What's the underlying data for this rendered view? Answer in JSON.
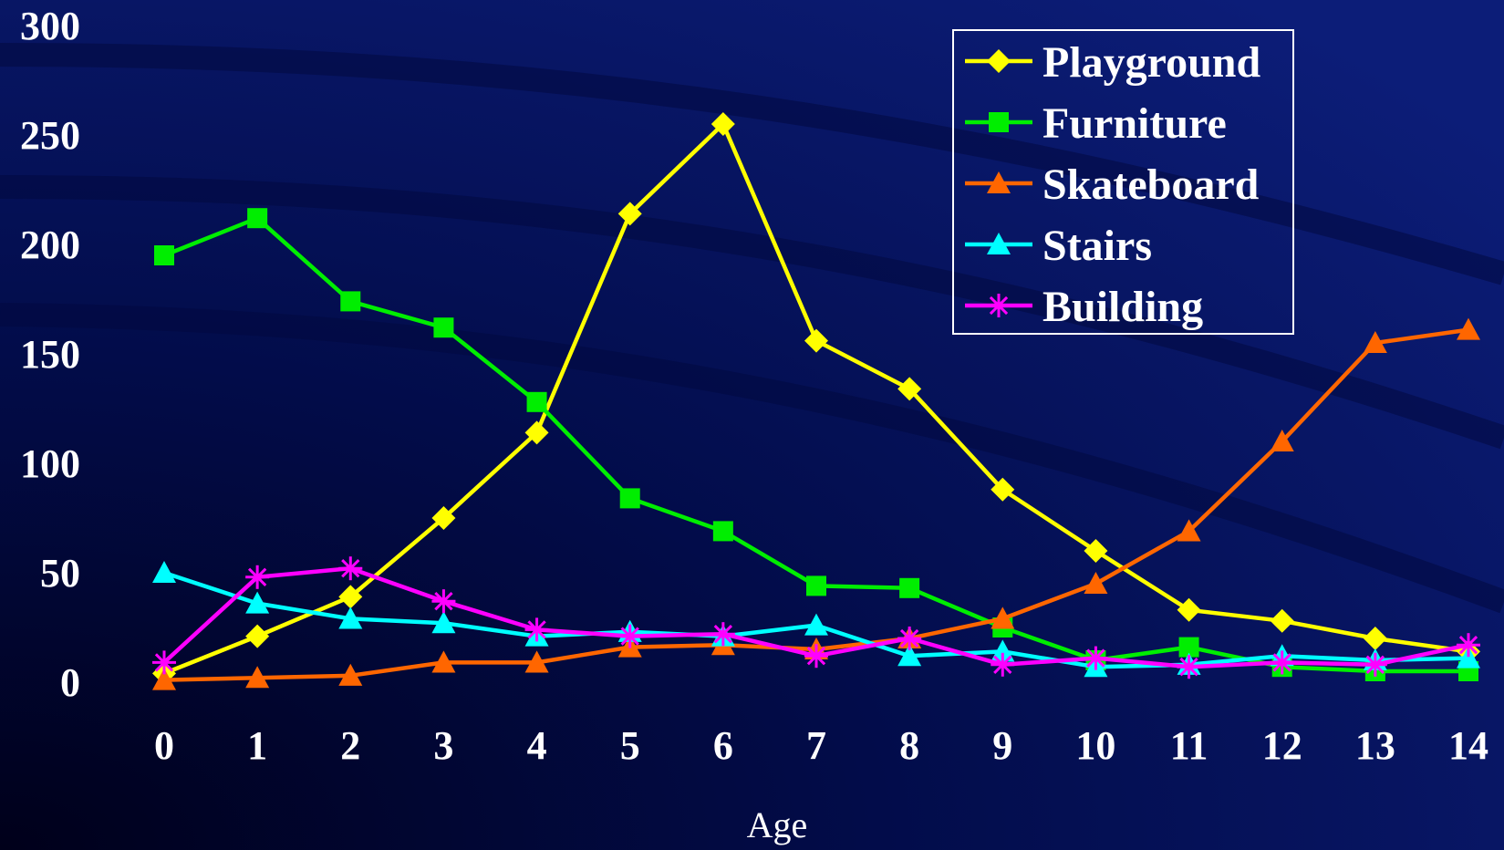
{
  "chart_data": {
    "type": "line",
    "title": "",
    "xlabel": "Age",
    "ylabel": "",
    "x": [
      0,
      1,
      2,
      3,
      4,
      5,
      6,
      7,
      8,
      9,
      10,
      11,
      12,
      13,
      14
    ],
    "ylim": [
      0,
      300
    ],
    "yticks": [
      0,
      50,
      100,
      150,
      200,
      250,
      300
    ],
    "grid": false,
    "legend_position": "top-right",
    "series": [
      {
        "name": "Playground",
        "color": "#ffff00",
        "marker": "diamond",
        "values": [
          4,
          21,
          39,
          75,
          114,
          214,
          255,
          156,
          134,
          88,
          60,
          33,
          28,
          20,
          14
        ]
      },
      {
        "name": "Furniture",
        "color": "#00ee00",
        "marker": "square",
        "values": [
          195,
          212,
          174,
          162,
          128,
          84,
          69,
          44,
          43,
          25,
          10,
          16,
          7,
          5,
          5
        ]
      },
      {
        "name": "Skateboard",
        "color": "#ff6600",
        "marker": "triangle",
        "values": [
          1,
          2,
          3,
          9,
          9,
          16,
          17,
          15,
          20,
          29,
          45,
          69,
          110,
          155,
          161
        ]
      },
      {
        "name": "Stairs",
        "color": "#00ffff",
        "marker": "triangle",
        "values": [
          50,
          36,
          29,
          27,
          21,
          23,
          21,
          26,
          12,
          14,
          7,
          8,
          12,
          10,
          11
        ]
      },
      {
        "name": "Building",
        "color": "#ff00ff",
        "marker": "star",
        "values": [
          9,
          48,
          52,
          37,
          24,
          21,
          22,
          12,
          20,
          8,
          11,
          7,
          9,
          8,
          17
        ]
      }
    ]
  }
}
